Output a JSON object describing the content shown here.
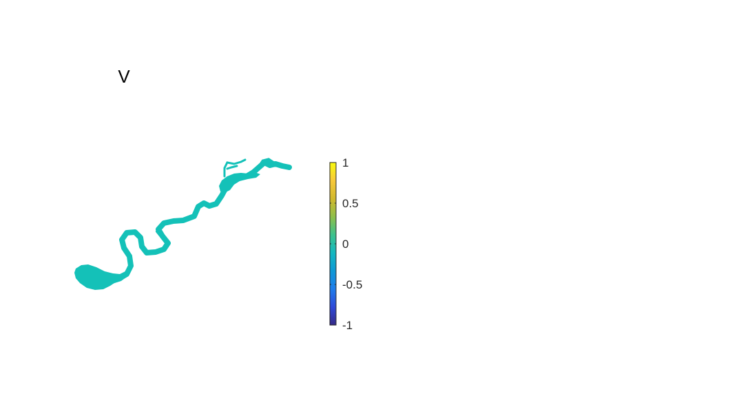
{
  "chart_data": {
    "type": "heatmap",
    "title": "V",
    "xlabel": "",
    "ylabel": "",
    "axes_visible": false,
    "field_value": 0,
    "field_color": "#14C1B8",
    "colorbar": {
      "colormap": "parula",
      "clim": [
        -1,
        1
      ],
      "ticks": [
        1,
        0.5,
        0,
        -0.5,
        -1
      ],
      "tick_labels": [
        "1",
        "0.5",
        "0",
        "-0.5",
        "-1"
      ],
      "stops": [
        "#352A87",
        "#2E49D9",
        "#1F7DEB",
        "#0E99D6",
        "#14B8C0",
        "#3DC18C",
        "#8FBF4A",
        "#D2B92E",
        "#F8C93A",
        "#F9FB0E"
      ]
    }
  }
}
